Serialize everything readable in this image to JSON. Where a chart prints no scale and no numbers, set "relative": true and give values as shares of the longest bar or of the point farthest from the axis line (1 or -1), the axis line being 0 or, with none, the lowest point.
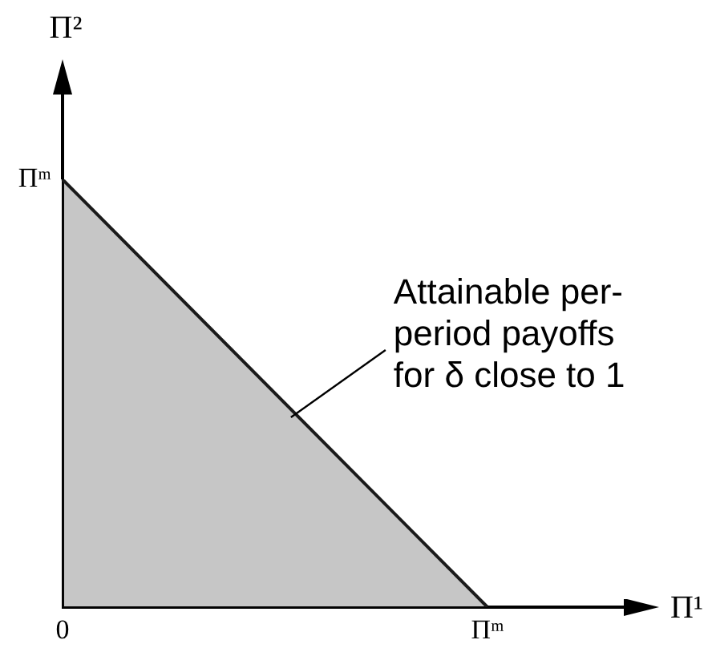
{
  "chart_data": {
    "type": "area",
    "relative": true,
    "xlabel": "Π¹",
    "ylabel": "Π²",
    "categories": [
      "0",
      "Πᵐ"
    ],
    "values": [
      1,
      0
    ],
    "color": "#1a1a1a",
    "annotations": [
      "Πᵐ",
      "Attainable per-period payoffs for δ close to 1"
    ]
  }
}
